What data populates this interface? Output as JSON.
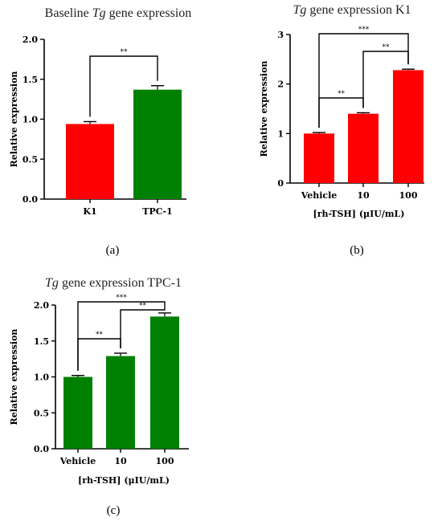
{
  "chart_data": [
    {
      "type": "bar",
      "panel_label": "(a)",
      "title_italic": "Tg",
      "title_pre": "Baseline ",
      "title_post": " gene expression",
      "xlabel": "",
      "ylabel": "Relative expression",
      "ylim": [
        0,
        2.0
      ],
      "yticks": [
        "0.0",
        "0.5",
        "1.0",
        "1.5",
        "2.0"
      ],
      "categories": [
        "K1",
        "TPC-1"
      ],
      "values": [
        0.94,
        1.37
      ],
      "errors": [
        0.03,
        0.05
      ],
      "colors": [
        "#ff0000",
        "#008000"
      ],
      "significance": [
        {
          "from": 0,
          "to": 1,
          "label": "**"
        }
      ]
    },
    {
      "type": "bar",
      "panel_label": "(b)",
      "title_italic": "Tg",
      "title_pre": "",
      "title_post": " gene expression K1",
      "xlabel": "[rh-TSH] (μIU/mL)",
      "ylabel": "Relative expression",
      "ylim": [
        0,
        3
      ],
      "yticks": [
        "0",
        "1",
        "2",
        "3"
      ],
      "categories": [
        "Vehicle",
        "10",
        "100"
      ],
      "values": [
        1.0,
        1.4,
        2.28
      ],
      "errors": [
        0.02,
        0.02,
        0.02
      ],
      "colors": [
        "#ff0000",
        "#ff0000",
        "#ff0000"
      ],
      "significance": [
        {
          "from": 0,
          "to": 1,
          "label": "**"
        },
        {
          "from": 1,
          "to": 2,
          "label": "**"
        },
        {
          "from": 0,
          "to": 2,
          "label": "***"
        }
      ]
    },
    {
      "type": "bar",
      "panel_label": "(c)",
      "title_italic": "Tg",
      "title_pre": "",
      "title_post": " gene expression TPC-1",
      "xlabel": "[rh-TSH] (μIU/mL)",
      "ylabel": "Relative expression",
      "ylim": [
        0,
        2.0
      ],
      "yticks": [
        "0.0",
        "0.5",
        "1.0",
        "1.5",
        "2.0"
      ],
      "categories": [
        "Vehicle",
        "10",
        "100"
      ],
      "values": [
        1.0,
        1.29,
        1.84
      ],
      "errors": [
        0.02,
        0.04,
        0.05
      ],
      "colors": [
        "#008000",
        "#008000",
        "#008000"
      ],
      "significance": [
        {
          "from": 0,
          "to": 1,
          "label": "**"
        },
        {
          "from": 1,
          "to": 2,
          "label": "**"
        },
        {
          "from": 0,
          "to": 2,
          "label": "***"
        }
      ]
    }
  ]
}
